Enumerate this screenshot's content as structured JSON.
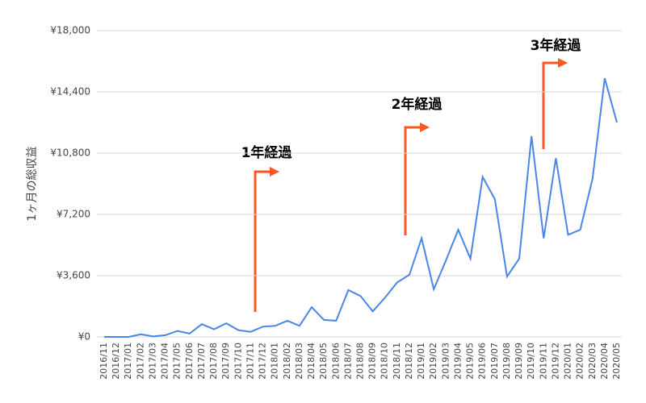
{
  "chart_data": {
    "type": "line",
    "y_label": "1ヶ月の総収益",
    "x": [
      "2016/11",
      "2016/12",
      "2017/01",
      "2017/02",
      "2017/03",
      "2017/04",
      "2017/05",
      "2017/06",
      "2017/07",
      "2017/08",
      "2017/09",
      "2017/10",
      "2017/11",
      "2017/12",
      "2018/01",
      "2018/02",
      "2018/03",
      "2018/04",
      "2018/05",
      "2018/06",
      "2018/07",
      "2018/08",
      "2018/09",
      "2018/10",
      "2018/11",
      "2018/12",
      "2019/01",
      "2019/02",
      "2019/03",
      "2019/04",
      "2019/05",
      "2019/06",
      "2019/07",
      "2019/08",
      "2019/09",
      "2019/10",
      "2019/11",
      "2019/12",
      "2020/01",
      "2020/02",
      "2020/03",
      "2020/04",
      "2020/05"
    ],
    "values": [
      0,
      0,
      0,
      150,
      30,
      100,
      350,
      200,
      750,
      450,
      800,
      400,
      300,
      600,
      650,
      950,
      650,
      1750,
      1000,
      950,
      2750,
      2400,
      1500,
      2300,
      3200,
      3650,
      5800,
      2800,
      4500,
      6300,
      4600,
      9400,
      8100,
      3550,
      4600,
      11800,
      5800,
      10500,
      6000,
      6300,
      9300,
      15200,
      12600
    ],
    "color": "#4a86e8",
    "ylim": [
      0,
      18000
    ],
    "yticks": [
      {
        "value": 0,
        "label": "¥0"
      },
      {
        "value": 3600,
        "label": "¥3,600"
      },
      {
        "value": 7200,
        "label": "¥7,200"
      },
      {
        "value": 10800,
        "label": "¥10,800"
      },
      {
        "value": 14400,
        "label": "¥14,400"
      },
      {
        "value": 18000,
        "label": "¥18,000"
      }
    ],
    "grid": true,
    "annotations": [
      "1年経過",
      "2年経過",
      "3年経過"
    ]
  }
}
